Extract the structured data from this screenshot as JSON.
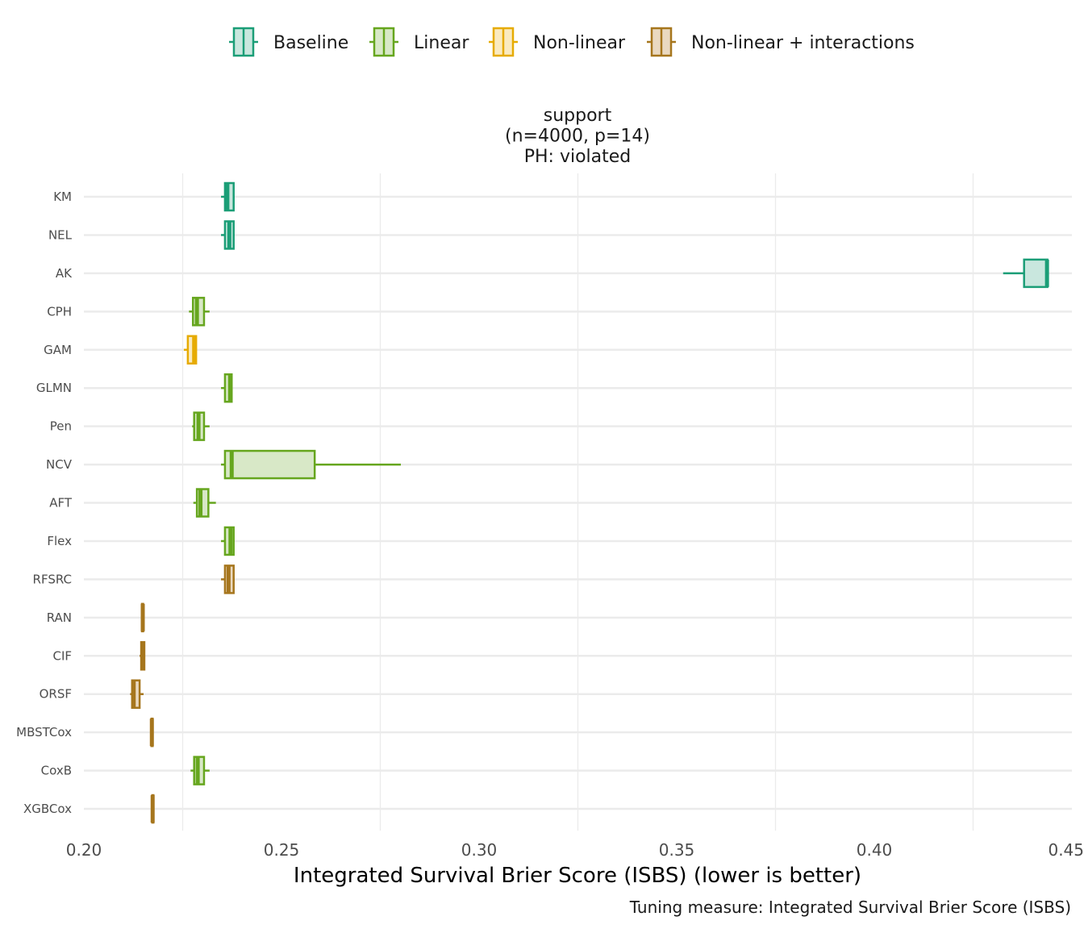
{
  "chart_data": {
    "type": "boxplot",
    "orientation": "horizontal",
    "title_lines": [
      "support",
      "(n=4000, p=14)",
      "PH: violated"
    ],
    "xlabel": "Integrated Survival Brier Score (ISBS) (lower is better)",
    "ylabel": "",
    "caption": "Tuning measure: Integrated Survival Brier Score (ISBS)",
    "xlim": [
      0.2,
      0.45
    ],
    "xticks": [
      {
        "value": 0.2,
        "label": "0.20"
      },
      {
        "value": 0.25,
        "label": "0.25"
      },
      {
        "value": 0.3,
        "label": "0.30"
      },
      {
        "value": 0.35,
        "label": "0.35"
      },
      {
        "value": 0.4,
        "label": "0.40"
      },
      {
        "value": 0.45,
        "label": "0.45"
      }
    ],
    "legend_position": "top",
    "groups": [
      {
        "name": "Baseline",
        "color": "#1b9e77",
        "fill": "#c9e7de"
      },
      {
        "name": "Linear",
        "color": "#66a61e",
        "fill": "#d8e8c7"
      },
      {
        "name": "Non-linear",
        "color": "#e6ab02",
        "fill": "#faeac0"
      },
      {
        "name": "Non-linear + interactions",
        "color": "#a6761d",
        "fill": "#ead9c0"
      }
    ],
    "series": [
      {
        "model": "KM",
        "group": "Baseline",
        "whisker_low": 0.2347,
        "q1": 0.2357,
        "median": 0.2363,
        "q3": 0.2379,
        "whisker_high": 0.2381
      },
      {
        "model": "NEL",
        "group": "Baseline",
        "whisker_low": 0.2347,
        "q1": 0.2357,
        "median": 0.2368,
        "q3": 0.2379,
        "whisker_high": 0.2381
      },
      {
        "model": "AK",
        "group": "Baseline",
        "whisker_low": 0.4326,
        "q1": 0.4379,
        "median": 0.4437,
        "q3": 0.4438,
        "whisker_high": 0.4438
      },
      {
        "model": "CPH",
        "group": "Linear",
        "whisker_low": 0.2266,
        "q1": 0.2276,
        "median": 0.2286,
        "q3": 0.2304,
        "whisker_high": 0.2318
      },
      {
        "model": "GAM",
        "group": "Non-linear",
        "whisker_low": 0.2253,
        "q1": 0.2263,
        "median": 0.2279,
        "q3": 0.2284,
        "whisker_high": 0.2284
      },
      {
        "model": "GLMN",
        "group": "Linear",
        "whisker_low": 0.2347,
        "q1": 0.2357,
        "median": 0.237,
        "q3": 0.2374,
        "whisker_high": 0.2376
      },
      {
        "model": "Pen",
        "group": "Linear",
        "whisker_low": 0.2274,
        "q1": 0.2279,
        "median": 0.229,
        "q3": 0.2304,
        "whisker_high": 0.2318
      },
      {
        "model": "NCV",
        "group": "Linear",
        "whisker_low": 0.2347,
        "q1": 0.2357,
        "median": 0.2374,
        "q3": 0.2584,
        "whisker_high": 0.2802
      },
      {
        "model": "AFT",
        "group": "Linear",
        "whisker_low": 0.2277,
        "q1": 0.2286,
        "median": 0.2295,
        "q3": 0.2315,
        "whisker_high": 0.2334
      },
      {
        "model": "Flex",
        "group": "Linear",
        "whisker_low": 0.2347,
        "q1": 0.2357,
        "median": 0.2371,
        "q3": 0.2379,
        "whisker_high": 0.2381
      },
      {
        "model": "RFSRC",
        "group": "Non-linear + interactions",
        "whisker_low": 0.2347,
        "q1": 0.2357,
        "median": 0.2366,
        "q3": 0.2379,
        "whisker_high": 0.2381
      },
      {
        "model": "RAN",
        "group": "Non-linear + interactions",
        "whisker_low": 0.2145,
        "q1": 0.2147,
        "median": 0.2149,
        "q3": 0.215,
        "whisker_high": 0.2151
      },
      {
        "model": "CIF",
        "group": "Non-linear + interactions",
        "whisker_low": 0.2141,
        "q1": 0.2145,
        "median": 0.215,
        "q3": 0.2153,
        "whisker_high": 0.2155
      },
      {
        "model": "ORSF",
        "group": "Non-linear + interactions",
        "whisker_low": 0.2117,
        "q1": 0.2122,
        "median": 0.2126,
        "q3": 0.2141,
        "whisker_high": 0.2151
      },
      {
        "model": "MBSTCox",
        "group": "Non-linear + interactions",
        "whisker_low": 0.217,
        "q1": 0.2171,
        "median": 0.2172,
        "q3": 0.2174,
        "whisker_high": 0.2175
      },
      {
        "model": "CoxB",
        "group": "Linear",
        "whisker_low": 0.227,
        "q1": 0.2279,
        "median": 0.2288,
        "q3": 0.2304,
        "whisker_high": 0.2318
      },
      {
        "model": "XGBCox",
        "group": "Non-linear + interactions",
        "whisker_low": 0.2172,
        "q1": 0.2173,
        "median": 0.2174,
        "q3": 0.2176,
        "whisker_high": 0.2178
      }
    ]
  }
}
